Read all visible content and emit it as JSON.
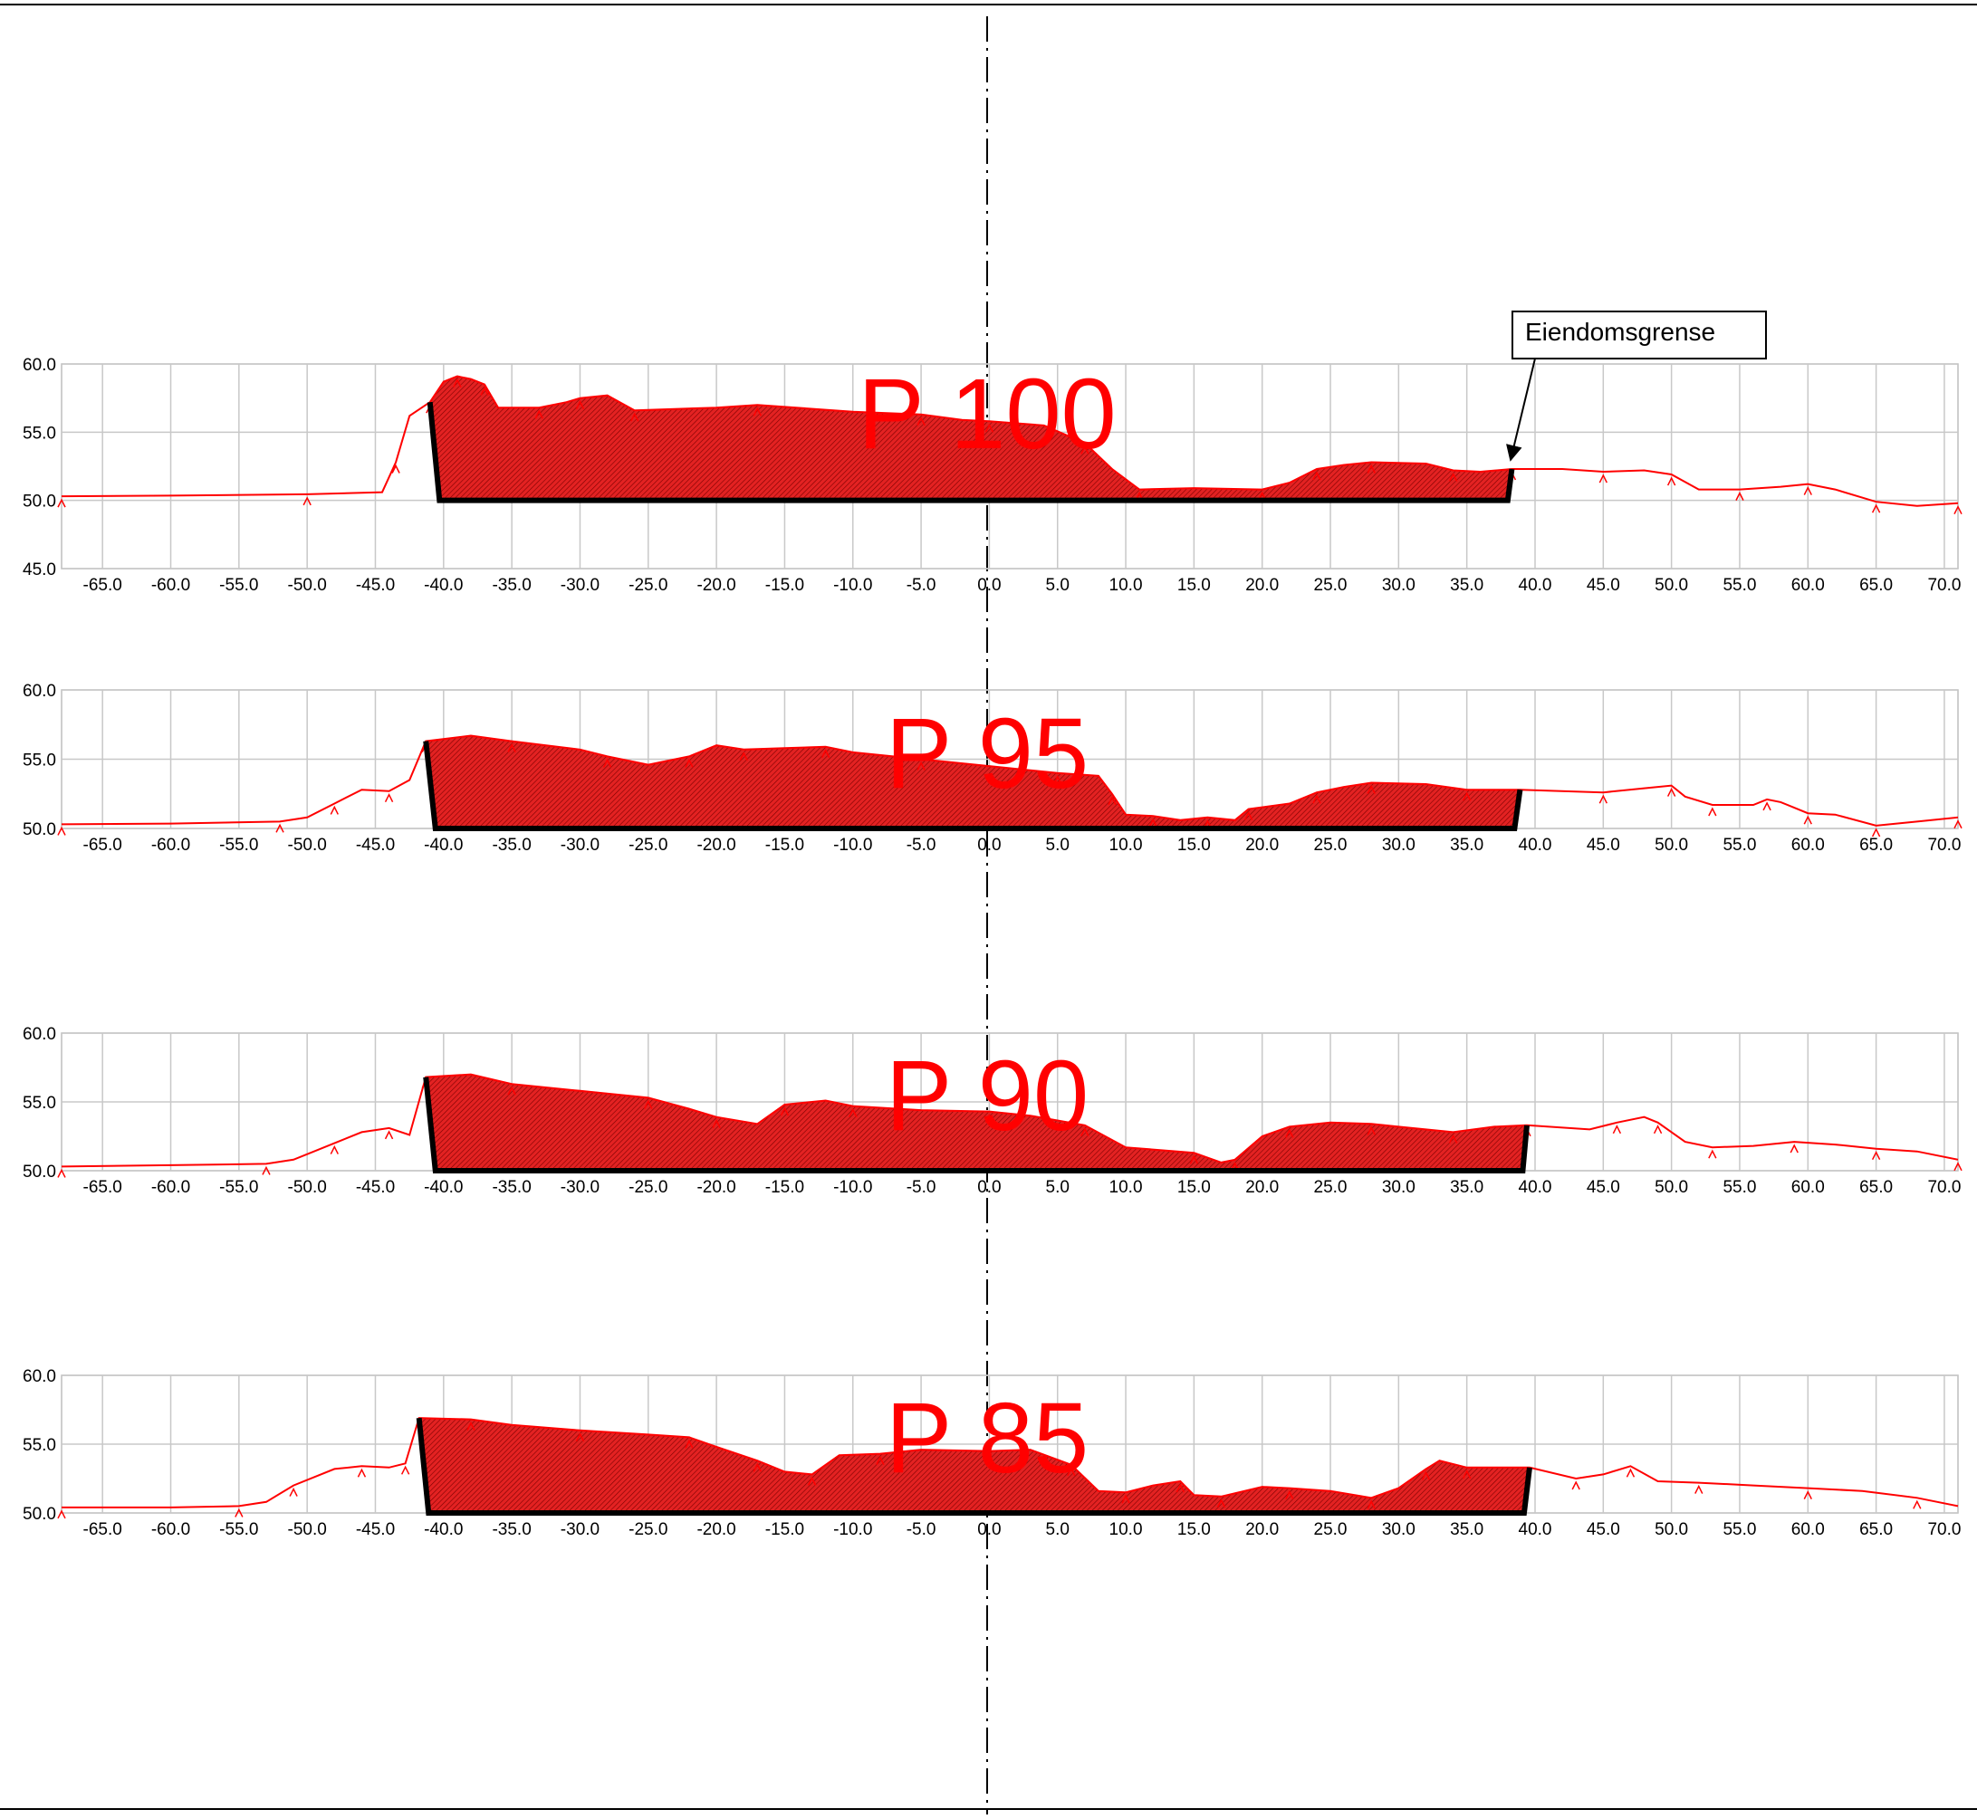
{
  "chart_data": [
    {
      "type": "area",
      "title": "P 100",
      "ylim": [
        45,
        60
      ],
      "xlim": [
        -68,
        71
      ],
      "y_ticks": [
        "45.0",
        "50.0",
        "55.0",
        "60.0"
      ],
      "x_ticks": [
        "-65.0",
        "-60.0",
        "-55.0",
        "-50.0",
        "-45.0",
        "-40.0",
        "-35.0",
        "-30.0",
        "-25.0",
        "-20.0",
        "-15.0",
        "-10.0",
        "-5.0",
        "0.0",
        "5.0",
        "10.0",
        "15.0",
        "20.0",
        "25.0",
        "30.0",
        "35.0",
        "40.0",
        "45.0",
        "50.0",
        "55.0",
        "60.0",
        "65.0",
        "70.0"
      ],
      "grid": true,
      "annotation": "Eiendomsgrense",
      "excavation": {
        "left_top": [
          -41,
          57.2
        ],
        "left_bottom": [
          -40.3,
          50.0
        ],
        "right_bottom": [
          38.0,
          50.0
        ],
        "right_top": [
          38.3,
          52.3
        ],
        "bottom": 50.0
      },
      "terrain": [
        [
          -68,
          50.3
        ],
        [
          -60,
          50.35
        ],
        [
          -50,
          50.45
        ],
        [
          -44.5,
          50.6
        ],
        [
          -43.5,
          52.8
        ],
        [
          -42.5,
          56.2
        ],
        [
          -41,
          57.2
        ],
        [
          -40,
          58.7
        ],
        [
          -39,
          59.1
        ],
        [
          -38,
          58.9
        ],
        [
          -37,
          58.5
        ],
        [
          -36,
          56.8
        ],
        [
          -33,
          56.8
        ],
        [
          -31,
          57.2
        ],
        [
          -30,
          57.5
        ],
        [
          -28,
          57.7
        ],
        [
          -26,
          56.6
        ],
        [
          -20,
          56.8
        ],
        [
          -17,
          57.0
        ],
        [
          -10,
          56.5
        ],
        [
          -5,
          56.3
        ],
        [
          -2,
          55.9
        ],
        [
          0,
          55.8
        ],
        [
          4,
          55.5
        ],
        [
          7,
          54.2
        ],
        [
          9,
          52.3
        ],
        [
          11,
          50.8
        ],
        [
          15,
          50.9
        ],
        [
          20,
          50.8
        ],
        [
          22,
          51.3
        ],
        [
          24,
          52.3
        ],
        [
          26,
          52.6
        ],
        [
          28,
          52.8
        ],
        [
          32,
          52.7
        ],
        [
          34,
          52.2
        ],
        [
          36,
          52.1
        ],
        [
          38.3,
          52.3
        ],
        [
          42,
          52.3
        ],
        [
          45,
          52.1
        ],
        [
          48,
          52.2
        ],
        [
          50,
          51.9
        ],
        [
          52,
          50.8
        ],
        [
          55,
          50.8
        ],
        [
          58,
          51.0
        ],
        [
          60,
          51.2
        ],
        [
          62,
          50.8
        ],
        [
          65,
          49.9
        ],
        [
          68,
          49.6
        ],
        [
          71,
          49.8
        ]
      ]
    },
    {
      "type": "area",
      "title": "P 95",
      "ylim": [
        50,
        60
      ],
      "xlim": [
        -68,
        71
      ],
      "y_ticks": [
        "50.0",
        "55.0",
        "60.0"
      ],
      "x_ticks": [
        "-65.0",
        "-60.0",
        "-55.0",
        "-50.0",
        "-45.0",
        "-40.0",
        "-35.0",
        "-30.0",
        "-25.0",
        "-20.0",
        "-15.0",
        "-10.0",
        "-5.0",
        "0.0",
        "5.0",
        "10.0",
        "15.0",
        "20.0",
        "25.0",
        "30.0",
        "35.0",
        "40.0",
        "45.0",
        "50.0",
        "55.0",
        "60.0",
        "65.0",
        "70.0"
      ],
      "grid": true,
      "excavation": {
        "left_top": [
          -41.3,
          56.3
        ],
        "left_bottom": [
          -40.6,
          50.0
        ],
        "right_bottom": [
          38.5,
          50.0
        ],
        "right_top": [
          38.9,
          52.8
        ],
        "bottom": 50.0
      },
      "terrain": [
        [
          -68,
          50.3
        ],
        [
          -60,
          50.35
        ],
        [
          -52,
          50.5
        ],
        [
          -50,
          50.8
        ],
        [
          -48,
          51.8
        ],
        [
          -46,
          52.8
        ],
        [
          -44,
          52.7
        ],
        [
          -42.5,
          53.5
        ],
        [
          -41.3,
          56.3
        ],
        [
          -38,
          56.7
        ],
        [
          -35,
          56.3
        ],
        [
          -30,
          55.7
        ],
        [
          -28,
          55.2
        ],
        [
          -25,
          54.6
        ],
        [
          -22,
          55.2
        ],
        [
          -20,
          56.0
        ],
        [
          -18,
          55.7
        ],
        [
          -15,
          55.8
        ],
        [
          -12,
          55.9
        ],
        [
          -10,
          55.5
        ],
        [
          -5,
          55.0
        ],
        [
          0,
          54.5
        ],
        [
          5,
          54.0
        ],
        [
          8,
          53.8
        ],
        [
          9,
          52.5
        ],
        [
          10,
          51.0
        ],
        [
          12,
          50.9
        ],
        [
          14,
          50.6
        ],
        [
          16,
          50.8
        ],
        [
          18,
          50.6
        ],
        [
          19,
          51.4
        ],
        [
          22,
          51.8
        ],
        [
          24,
          52.6
        ],
        [
          26,
          53.0
        ],
        [
          28,
          53.3
        ],
        [
          32,
          53.2
        ],
        [
          35,
          52.8
        ],
        [
          38.9,
          52.8
        ],
        [
          45,
          52.6
        ],
        [
          48,
          52.9
        ],
        [
          50,
          53.1
        ],
        [
          51,
          52.3
        ],
        [
          53,
          51.7
        ],
        [
          56,
          51.7
        ],
        [
          57,
          52.1
        ],
        [
          58,
          51.9
        ],
        [
          60,
          51.1
        ],
        [
          62,
          51.0
        ],
        [
          65,
          50.2
        ],
        [
          68,
          50.5
        ],
        [
          71,
          50.8
        ]
      ]
    },
    {
      "type": "area",
      "title": "P 90",
      "ylim": [
        50,
        60
      ],
      "xlim": [
        -68,
        71
      ],
      "y_ticks": [
        "50.0",
        "55.0",
        "60.0"
      ],
      "x_ticks": [
        "-65.0",
        "-60.0",
        "-55.0",
        "-50.0",
        "-45.0",
        "-40.0",
        "-35.0",
        "-30.0",
        "-25.0",
        "-20.0",
        "-15.0",
        "-10.0",
        "-5.0",
        "0.0",
        "5.0",
        "10.0",
        "15.0",
        "20.0",
        "25.0",
        "30.0",
        "35.0",
        "40.0",
        "45.0",
        "50.0",
        "55.0",
        "60.0",
        "65.0",
        "70.0"
      ],
      "grid": true,
      "excavation": {
        "left_top": [
          -41.3,
          56.8
        ],
        "left_bottom": [
          -40.6,
          50.0
        ],
        "right_bottom": [
          39.1,
          50.0
        ],
        "right_top": [
          39.4,
          53.3
        ],
        "bottom": 50.0
      },
      "terrain": [
        [
          -68,
          50.3
        ],
        [
          -60,
          50.4
        ],
        [
          -53,
          50.5
        ],
        [
          -51,
          50.8
        ],
        [
          -48,
          52.0
        ],
        [
          -46,
          52.8
        ],
        [
          -44,
          53.1
        ],
        [
          -42.5,
          52.6
        ],
        [
          -41.3,
          56.8
        ],
        [
          -38,
          57.0
        ],
        [
          -35,
          56.3
        ],
        [
          -30,
          55.8
        ],
        [
          -25,
          55.3
        ],
        [
          -22,
          54.5
        ],
        [
          -20,
          53.9
        ],
        [
          -17,
          53.4
        ],
        [
          -15,
          54.8
        ],
        [
          -12,
          55.1
        ],
        [
          -10,
          54.7
        ],
        [
          -5,
          54.4
        ],
        [
          0,
          54.3
        ],
        [
          3,
          54.0
        ],
        [
          7,
          53.3
        ],
        [
          10,
          51.7
        ],
        [
          15,
          51.3
        ],
        [
          17,
          50.6
        ],
        [
          18,
          50.8
        ],
        [
          20,
          52.5
        ],
        [
          22,
          53.2
        ],
        [
          25,
          53.5
        ],
        [
          28,
          53.4
        ],
        [
          30,
          53.2
        ],
        [
          34,
          52.8
        ],
        [
          37,
          53.2
        ],
        [
          39.4,
          53.3
        ],
        [
          44,
          53.0
        ],
        [
          46,
          53.5
        ],
        [
          48,
          53.9
        ],
        [
          49,
          53.5
        ],
        [
          51,
          52.1
        ],
        [
          53,
          51.7
        ],
        [
          56,
          51.8
        ],
        [
          59,
          52.1
        ],
        [
          62,
          51.9
        ],
        [
          65,
          51.6
        ],
        [
          68,
          51.4
        ],
        [
          71,
          50.8
        ]
      ]
    },
    {
      "type": "area",
      "title": "P 85",
      "ylim": [
        50,
        60
      ],
      "xlim": [
        -68,
        71
      ],
      "y_ticks": [
        "50.0",
        "55.0",
        "60.0"
      ],
      "x_ticks": [
        "-65.0",
        "-60.0",
        "-55.0",
        "-50.0",
        "-45.0",
        "-40.0",
        "-35.0",
        "-30.0",
        "-25.0",
        "-20.0",
        "-15.0",
        "-10.0",
        "-5.0",
        "0.0",
        "5.0",
        "10.0",
        "15.0",
        "20.0",
        "25.0",
        "30.0",
        "35.0",
        "40.0",
        "45.0",
        "50.0",
        "55.0",
        "60.0",
        "65.0",
        "70.0"
      ],
      "grid": true,
      "excavation": {
        "left_top": [
          -41.8,
          56.9
        ],
        "left_bottom": [
          -41.1,
          50.0
        ],
        "right_bottom": [
          39.2,
          50.0
        ],
        "right_top": [
          39.6,
          53.3
        ],
        "bottom": 50.0
      },
      "terrain": [
        [
          -68,
          50.4
        ],
        [
          -60,
          50.4
        ],
        [
          -55,
          50.5
        ],
        [
          -53,
          50.8
        ],
        [
          -51,
          52.0
        ],
        [
          -48,
          53.2
        ],
        [
          -46,
          53.4
        ],
        [
          -44,
          53.3
        ],
        [
          -42.8,
          53.6
        ],
        [
          -41.8,
          56.9
        ],
        [
          -38,
          56.8
        ],
        [
          -35,
          56.4
        ],
        [
          -30,
          56.0
        ],
        [
          -25,
          55.7
        ],
        [
          -22,
          55.5
        ],
        [
          -20,
          54.8
        ],
        [
          -17,
          53.8
        ],
        [
          -15,
          53.0
        ],
        [
          -13,
          52.8
        ],
        [
          -11,
          54.2
        ],
        [
          -8,
          54.3
        ],
        [
          -5,
          54.6
        ],
        [
          0,
          54.5
        ],
        [
          3,
          54.6
        ],
        [
          6,
          53.5
        ],
        [
          8,
          51.6
        ],
        [
          10,
          51.5
        ],
        [
          12,
          52.0
        ],
        [
          14,
          52.3
        ],
        [
          15,
          51.3
        ],
        [
          17,
          51.2
        ],
        [
          20,
          51.9
        ],
        [
          22,
          51.8
        ],
        [
          25,
          51.6
        ],
        [
          28,
          51.1
        ],
        [
          30,
          51.8
        ],
        [
          32,
          53.2
        ],
        [
          33,
          53.8
        ],
        [
          35,
          53.3
        ],
        [
          39.6,
          53.3
        ],
        [
          43,
          52.5
        ],
        [
          45,
          52.8
        ],
        [
          47,
          53.4
        ],
        [
          49,
          52.3
        ],
        [
          52,
          52.2
        ],
        [
          56,
          52.0
        ],
        [
          60,
          51.8
        ],
        [
          64,
          51.6
        ],
        [
          68,
          51.1
        ],
        [
          71,
          50.5
        ]
      ]
    }
  ]
}
